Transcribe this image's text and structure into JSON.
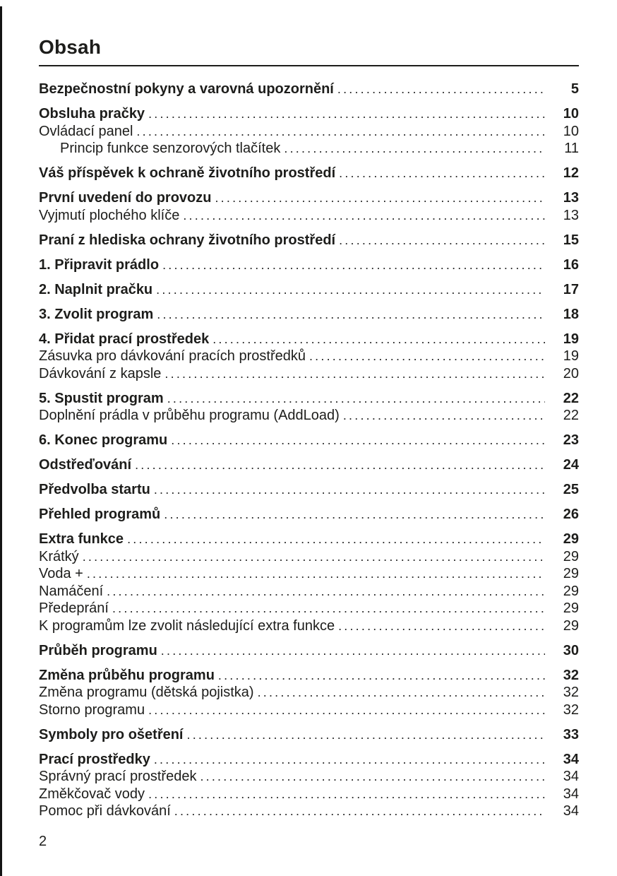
{
  "page": {
    "title": "Obsah",
    "footer_page_number": "2"
  },
  "colors": {
    "text": "#1d1d1b",
    "background": "#ffffff",
    "rule": "#1d1d1b"
  },
  "toc": {
    "groups": [
      {
        "items": [
          {
            "label": "Bezpečnostní pokyny a varovná upozornění",
            "page": "5",
            "bold": true,
            "indent": 0
          }
        ]
      },
      {
        "items": [
          {
            "label": "Obsluha pračky",
            "page": "10",
            "bold": true,
            "indent": 0
          },
          {
            "label": "Ovládací panel",
            "page": "10",
            "bold": false,
            "indent": 0
          },
          {
            "label": "Princip funkce senzorových tlačítek",
            "page": "11",
            "bold": false,
            "indent": 1
          }
        ]
      },
      {
        "items": [
          {
            "label": "Váš příspěvek k ochraně životního prostředí",
            "page": "12",
            "bold": true,
            "indent": 0
          }
        ]
      },
      {
        "items": [
          {
            "label": "První uvedení do provozu",
            "page": "13",
            "bold": true,
            "indent": 0
          },
          {
            "label": "Vyjmutí plochého klíče",
            "page": "13",
            "bold": false,
            "indent": 0
          }
        ]
      },
      {
        "items": [
          {
            "label": "Praní z hlediska ochrany životního prostředí",
            "page": "15",
            "bold": true,
            "indent": 0
          }
        ]
      },
      {
        "items": [
          {
            "label": "1. Připravit prádlo",
            "page": "16",
            "bold": true,
            "indent": 0
          }
        ]
      },
      {
        "items": [
          {
            "label": "2. Naplnit pračku",
            "page": "17",
            "bold": true,
            "indent": 0
          }
        ]
      },
      {
        "items": [
          {
            "label": "3. Zvolit program",
            "page": "18",
            "bold": true,
            "indent": 0
          }
        ]
      },
      {
        "items": [
          {
            "label": "4. Přidat prací prostředek",
            "page": "19",
            "bold": true,
            "indent": 0
          },
          {
            "label": "Zásuvka pro dávkování pracích prostředků",
            "page": "19",
            "bold": false,
            "indent": 0
          },
          {
            "label": "Dávkování z kapsle",
            "page": "20",
            "bold": false,
            "indent": 0
          }
        ]
      },
      {
        "items": [
          {
            "label": "5. Spustit program",
            "page": "22",
            "bold": true,
            "indent": 0
          },
          {
            "label": "Doplnění prádla v průběhu programu (AddLoad)",
            "page": "22",
            "bold": false,
            "indent": 0
          }
        ]
      },
      {
        "items": [
          {
            "label": "6. Konec programu",
            "page": "23",
            "bold": true,
            "indent": 0
          }
        ]
      },
      {
        "items": [
          {
            "label": "Odstřeďování",
            "page": "24",
            "bold": true,
            "indent": 0
          }
        ]
      },
      {
        "items": [
          {
            "label": "Předvolba startu",
            "page": "25",
            "bold": true,
            "indent": 0
          }
        ]
      },
      {
        "items": [
          {
            "label": "Přehled programů",
            "page": "26",
            "bold": true,
            "indent": 0
          }
        ]
      },
      {
        "items": [
          {
            "label": "Extra funkce",
            "page": "29",
            "bold": true,
            "indent": 0
          },
          {
            "label": "Krátký",
            "page": "29",
            "bold": false,
            "indent": 0
          },
          {
            "label": "Voda +",
            "page": "29",
            "bold": false,
            "indent": 0
          },
          {
            "label": "Namáčení",
            "page": "29",
            "bold": false,
            "indent": 0
          },
          {
            "label": "Předeprání",
            "page": "29",
            "bold": false,
            "indent": 0
          },
          {
            "label": "K programům lze zvolit následující extra funkce",
            "page": "29",
            "bold": false,
            "indent": 0
          }
        ]
      },
      {
        "items": [
          {
            "label": "Průběh programu",
            "page": "30",
            "bold": true,
            "indent": 0
          }
        ]
      },
      {
        "items": [
          {
            "label": "Změna průběhu programu",
            "page": "32",
            "bold": true,
            "indent": 0
          },
          {
            "label": "Změna programu (dětská pojistka)",
            "page": "32",
            "bold": false,
            "indent": 0
          },
          {
            "label": "Storno programu",
            "page": "32",
            "bold": false,
            "indent": 0
          }
        ]
      },
      {
        "items": [
          {
            "label": "Symboly pro ošetření",
            "page": "33",
            "bold": true,
            "indent": 0
          }
        ]
      },
      {
        "items": [
          {
            "label": "Prací prostředky",
            "page": "34",
            "bold": true,
            "indent": 0
          },
          {
            "label": "Správný prací prostředek",
            "page": "34",
            "bold": false,
            "indent": 0
          },
          {
            "label": "Změkčovač vody",
            "page": "34",
            "bold": false,
            "indent": 0
          },
          {
            "label": "Pomoc při dávkování",
            "page": "34",
            "bold": false,
            "indent": 0
          }
        ]
      }
    ]
  }
}
